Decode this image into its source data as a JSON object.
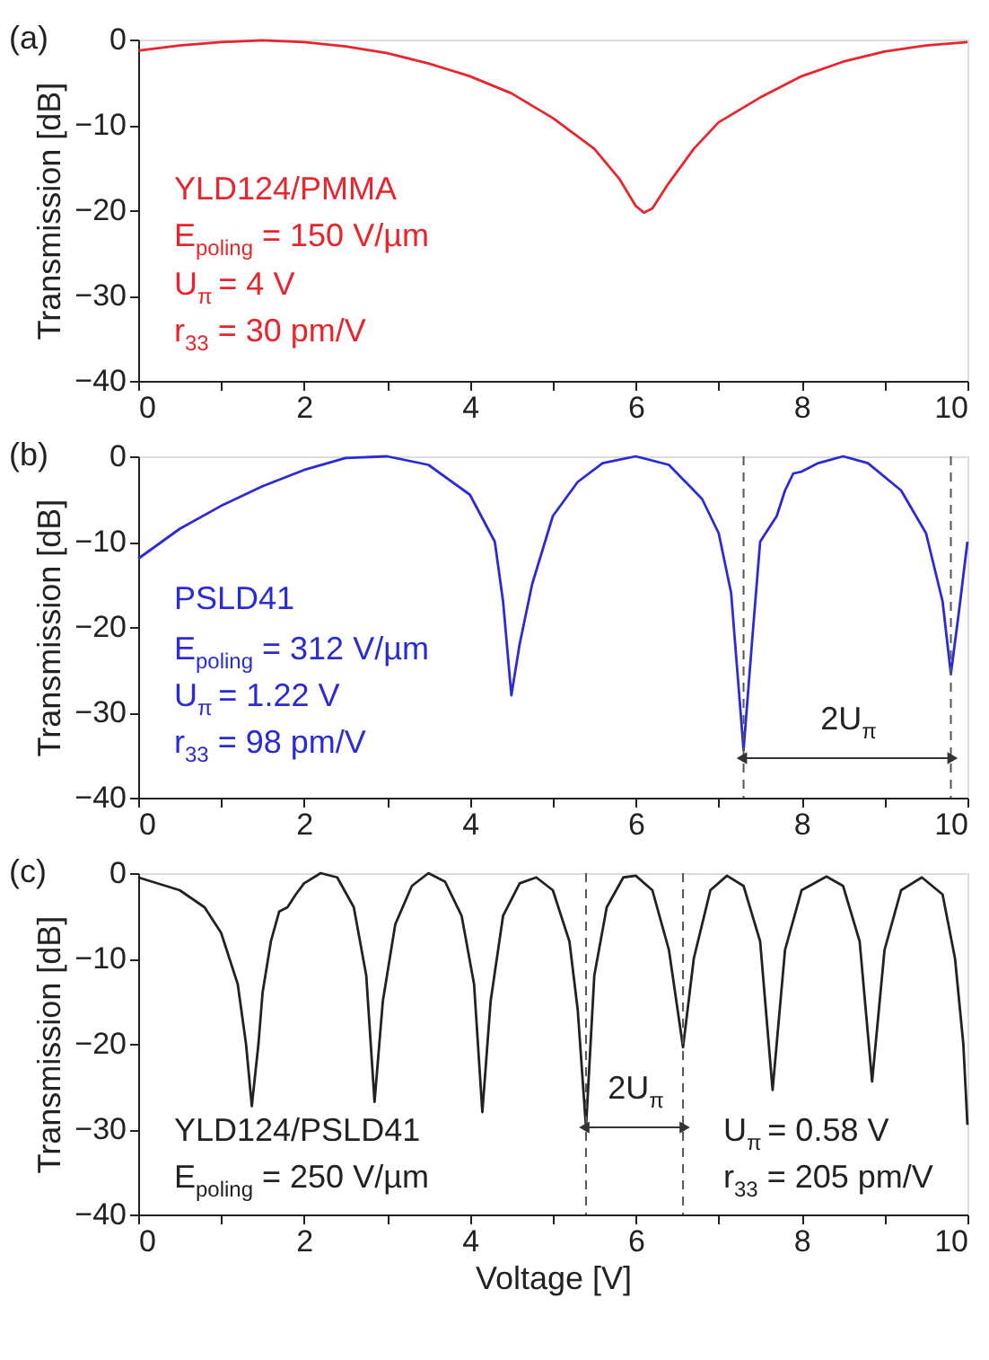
{
  "chart_data": [
    {
      "type": "line",
      "title": "(a)",
      "ylabel": "Transmission [dB]",
      "xlim": [
        0,
        10
      ],
      "ylim": [
        -40,
        0
      ],
      "xticks": [
        0,
        {
          "value": 1,
          "label": null
        },
        2,
        {
          "value": 3,
          "label": null
        },
        4,
        {
          "value": 5,
          "label": null
        },
        6,
        {
          "value": 7,
          "label": null
        },
        8,
        {
          "value": 9,
          "label": null
        },
        10
      ],
      "yticks": [
        -40,
        -30,
        -20,
        -10,
        0
      ],
      "grid": false,
      "marker": "none",
      "line_style": "solid",
      "annotations": [
        "YLD124/PMMA",
        "E$_{poling}$ = 150 V/µm",
        "U$_{π}$ = 4 V",
        "r$_{33}$ = 30 pm/V"
      ],
      "series": [
        {
          "color": "#e8242c",
          "x": [
            0,
            0.5,
            1,
            1.5,
            2,
            2.5,
            3,
            3.5,
            4,
            4.5,
            5,
            5.5,
            5.8,
            6.0,
            6.1,
            6.2,
            6.4,
            6.7,
            7,
            7.5,
            8,
            8.5,
            9,
            9.5,
            10
          ],
          "values": [
            -1.3,
            -0.7,
            -0.3,
            -0.1,
            -0.3,
            -0.8,
            -1.6,
            -2.8,
            -4.3,
            -6.3,
            -9.2,
            -12.8,
            -16.3,
            -19.5,
            -20.3,
            -19.8,
            -16.8,
            -12.8,
            -9.7,
            -6.8,
            -4.3,
            -2.6,
            -1.4,
            -0.7,
            -0.3
          ]
        }
      ]
    },
    {
      "type": "line",
      "title": "(b)",
      "ylabel": "Transmission [dB]",
      "xlim": [
        0,
        10
      ],
      "ylim": [
        -40,
        0
      ],
      "xticks": [
        0,
        {
          "value": 1,
          "label": null
        },
        2,
        {
          "value": 3,
          "label": null
        },
        4,
        {
          "value": 5,
          "label": null
        },
        6,
        {
          "value": 7,
          "label": null
        },
        8,
        {
          "value": 9,
          "label": null
        },
        10
      ],
      "yticks": [
        -40,
        -30,
        -20,
        -10,
        0
      ],
      "grid": false,
      "marker": "none",
      "line_style": "solid",
      "annotations": [
        "PSLD41",
        "E$_{poling}$ = 312 V/µm",
        "U$_{π}$ = 1.22 V",
        "r$_{33}$ = 98 pm/V",
        "2U$_{π}$"
      ],
      "ref_lines": [
        {
          "axis": "x",
          "value": 7.3,
          "color": "#555555",
          "line_style": "dashed"
        },
        {
          "axis": "x",
          "value": 9.8,
          "color": "#555555",
          "line_style": "dashed"
        }
      ],
      "series": [
        {
          "color": "#2b2bd6",
          "x": [
            0,
            0.5,
            1,
            1.5,
            2,
            2.5,
            3,
            3.5,
            4,
            4.3,
            4.4,
            4.5,
            4.6,
            4.75,
            5,
            5.3,
            5.6,
            6,
            6.4,
            6.8,
            7,
            7.15,
            7.3,
            7.4,
            7.5,
            7.7,
            7.8,
            7.9,
            8,
            8.2,
            8.5,
            8.8,
            9.2,
            9.5,
            9.7,
            9.8,
            9.9,
            10
          ],
          "values": [
            -12,
            -8.5,
            -5.8,
            -3.5,
            -1.6,
            -0.2,
            0,
            -1,
            -4.5,
            -10,
            -17,
            -28,
            -22,
            -15,
            -7,
            -3,
            -0.8,
            0,
            -1,
            -5,
            -9,
            -16,
            -34.4,
            -22,
            -10,
            -7,
            -4,
            -2,
            -1.8,
            -0.8,
            0,
            -0.8,
            -4,
            -9,
            -17,
            -25.5,
            -18,
            -10
          ]
        }
      ]
    },
    {
      "type": "line",
      "title": "(c)",
      "xlabel": "Voltage [V]",
      "ylabel": "Transmission [dB]",
      "xlim": [
        0,
        10
      ],
      "ylim": [
        -40,
        0
      ],
      "xticks": [
        0,
        {
          "value": 1,
          "label": null
        },
        2,
        {
          "value": 3,
          "label": null
        },
        4,
        {
          "value": 5,
          "label": null
        },
        6,
        {
          "value": 7,
          "label": null
        },
        8,
        {
          "value": 9,
          "label": null
        },
        10
      ],
      "yticks": [
        -40,
        -30,
        -20,
        -10,
        0
      ],
      "grid": false,
      "marker": "none",
      "line_style": "solid",
      "annotations": [
        "YLD124/PSLD41",
        "E$_{poling}$ = 250 V/µm",
        "U$_{π}$ = 0.58 V",
        "r$_{33}$ = 205 pm/V",
        {
          "text": "2U$_{π}$",
          "x": 5.4,
          "y": -29.8
        }
      ],
      "ref_lines": [
        {
          "axis": "x",
          "value": 5.4,
          "color": "#555555",
          "line_style": "dashed"
        },
        {
          "axis": "x",
          "value": 6.57,
          "color": "#555555",
          "line_style": "dashed"
        }
      ],
      "series": [
        {
          "color": "#222222",
          "x": [
            0,
            0.5,
            0.8,
            1.0,
            1.2,
            1.3,
            1.37,
            1.45,
            1.5,
            1.6,
            1.7,
            1.8,
            1.9,
            2,
            2.2,
            2.4,
            2.6,
            2.75,
            2.85,
            2.95,
            3.1,
            3.3,
            3.5,
            3.7,
            3.9,
            4.05,
            4.15,
            4.25,
            4.4,
            4.6,
            4.8,
            5.0,
            5.2,
            5.3,
            5.4,
            5.5,
            5.65,
            5.85,
            6,
            6.2,
            6.4,
            6.57,
            6.7,
            6.9,
            7.1,
            7.3,
            7.5,
            7.65,
            7.8,
            8.0,
            8.3,
            8.5,
            8.7,
            8.85,
            9.0,
            9.2,
            9.45,
            9.7,
            9.85,
            9.95,
            10
          ],
          "values": [
            -0.5,
            -2,
            -4,
            -7,
            -13,
            -20,
            -27.3,
            -20,
            -14,
            -8,
            -4.5,
            -4,
            -2.5,
            -1.2,
            0,
            -0.5,
            -4,
            -12,
            -26.8,
            -15,
            -6,
            -1.5,
            0,
            -1,
            -5,
            -13,
            -28,
            -15,
            -5,
            -1.2,
            -0.5,
            -2,
            -8,
            -16,
            -29.8,
            -12,
            -4,
            -0.5,
            -0.3,
            -2,
            -9,
            -20.4,
            -10,
            -2,
            -0.3,
            -1.5,
            -8,
            -25.4,
            -9,
            -2,
            -0.4,
            -1.5,
            -8,
            -24.4,
            -9,
            -2,
            -0.5,
            -2.5,
            -10,
            -20,
            -29.5
          ]
        }
      ]
    }
  ]
}
